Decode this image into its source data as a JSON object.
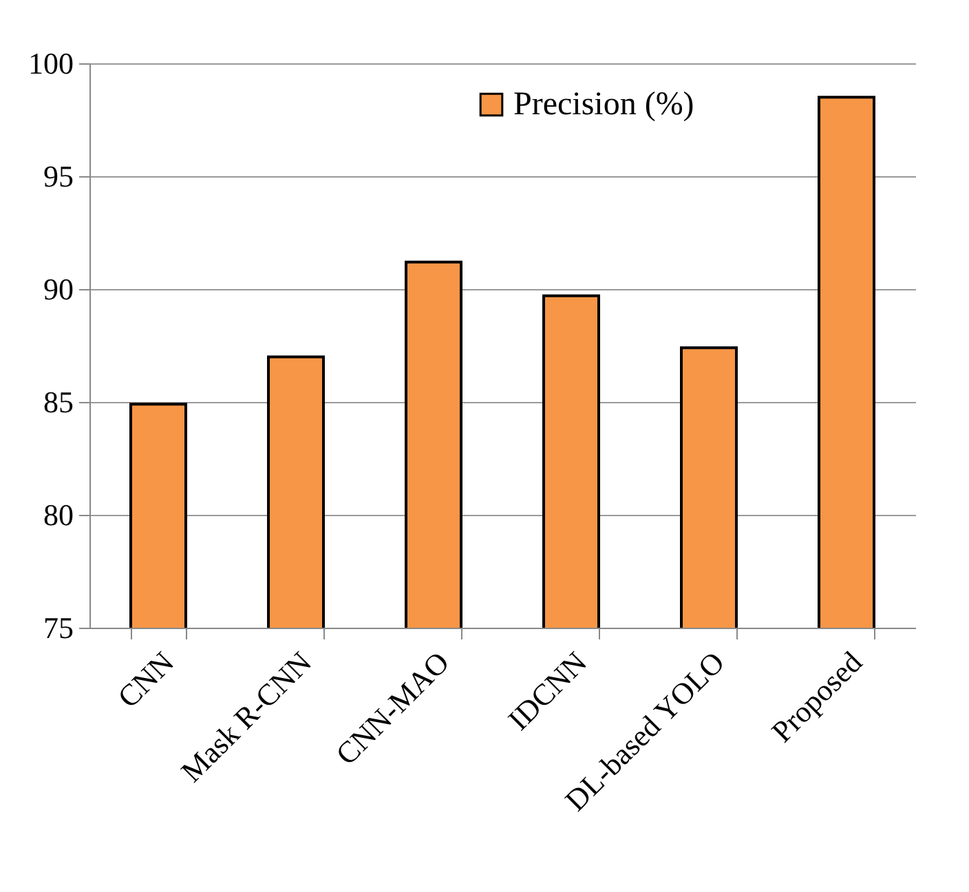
{
  "chart_data": {
    "type": "bar",
    "categories": [
      "CNN",
      "Mask R-CNN",
      "CNN-MAO",
      "IDCNN",
      "DL-based YOLO",
      "Proposed"
    ],
    "series": [
      {
        "name": "Precision (%)",
        "color": "#f79646",
        "values": [
          84.9,
          87.0,
          91.2,
          89.7,
          87.4,
          98.5
        ]
      }
    ],
    "ylim": [
      75,
      100
    ],
    "yticks": [
      75,
      80,
      85,
      90,
      95,
      100
    ],
    "grid": "y",
    "legend": "top"
  }
}
